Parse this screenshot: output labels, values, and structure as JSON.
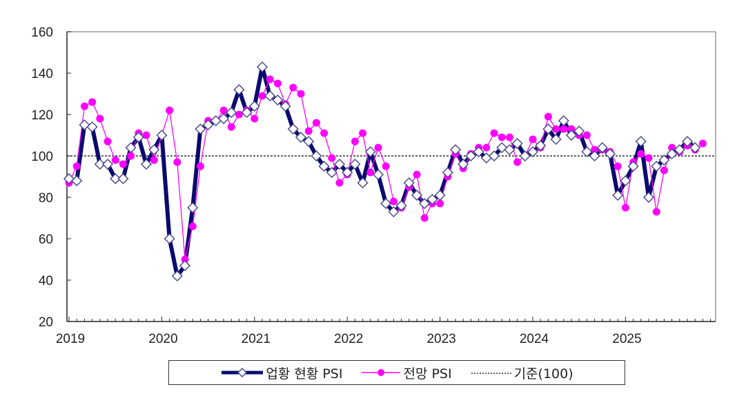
{
  "chart_data": {
    "type": "line",
    "title": "",
    "xlabel": "",
    "ylabel": "",
    "ylim": [
      20,
      160
    ],
    "yticks": [
      20,
      40,
      60,
      80,
      100,
      120,
      140,
      160
    ],
    "xtick_labels": [
      "2019",
      "2020",
      "2021",
      "2022",
      "2023",
      "2024",
      "2025"
    ],
    "x_frequency": "monthly",
    "x_start": "2019-01",
    "grid": false,
    "legend_position": "bottom",
    "reference_line": {
      "name": "기준(100)",
      "value": 100,
      "style": "dotted",
      "color": "#000000"
    },
    "series": [
      {
        "name": "업황 현황 PSI",
        "color": "#0a0a6e",
        "marker": "diamond-open",
        "values": [
          89,
          88,
          115,
          114,
          96,
          96,
          89,
          89,
          104,
          109,
          96,
          103,
          110,
          60,
          42,
          47,
          75,
          113,
          115,
          117,
          118,
          121,
          132,
          121,
          124,
          143,
          129,
          127,
          124,
          113,
          109,
          107,
          100,
          95,
          92,
          96,
          92,
          96,
          87,
          102,
          91,
          77,
          73,
          76,
          87,
          81,
          77,
          79,
          81,
          92,
          103,
          96,
          100,
          102,
          99,
          100,
          104,
          103,
          106,
          100,
          102,
          105,
          113,
          108,
          117,
          110,
          112,
          102,
          100,
          104,
          101,
          81,
          88,
          95,
          107,
          80,
          95,
          98,
          101,
          103,
          107,
          104
        ]
      },
      {
        "name": "전망 PSI",
        "color": "#ff00ff",
        "marker": "circle-filled",
        "values": [
          87,
          95,
          124,
          126,
          118,
          107,
          98,
          96,
          100,
          111,
          110,
          98,
          110,
          122,
          97,
          50,
          66,
          95,
          117,
          117,
          122,
          114,
          120,
          122,
          118,
          129,
          137,
          135,
          125,
          133,
          130,
          112,
          116,
          111,
          99,
          87,
          91,
          107,
          111,
          92,
          104,
          95,
          78,
          75,
          85,
          91,
          70,
          77,
          77,
          90,
          101,
          94,
          101,
          104,
          104,
          111,
          109,
          109,
          97,
          100,
          108,
          104,
          119,
          113,
          113,
          113,
          110,
          110,
          103,
          103,
          102,
          95,
          75,
          97,
          101,
          99,
          73,
          93,
          104,
          102,
          105,
          103,
          106
        ]
      }
    ]
  },
  "legend": {
    "items": [
      {
        "label": "업황 현황 PSI"
      },
      {
        "label": "전망 PSI"
      },
      {
        "label": "기준(100)"
      }
    ]
  }
}
